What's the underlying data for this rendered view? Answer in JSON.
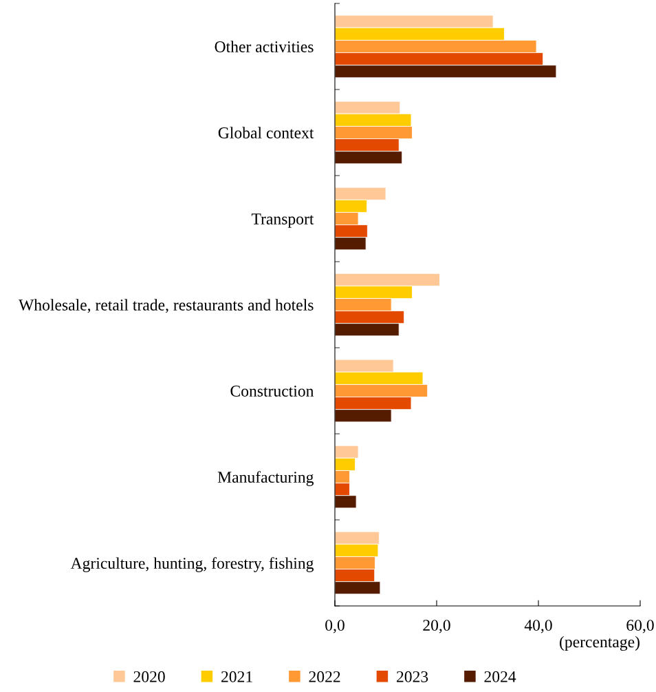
{
  "chart_data": {
    "type": "bar",
    "orientation": "horizontal",
    "categories": [
      "Other activities",
      "Global context",
      "Transport",
      "Wholesale, retail trade, restaurants and hotels",
      "Construction",
      "Manufacturing",
      "Agriculture, hunting, forestry, fishing"
    ],
    "series": [
      {
        "name": "2020",
        "color": "#ffc896",
        "values": [
          31.1,
          12.8,
          10.0,
          20.6,
          11.5,
          4.6,
          8.7
        ]
      },
      {
        "name": "2021",
        "color": "#ffcc00",
        "values": [
          33.3,
          15.0,
          6.3,
          15.2,
          17.3,
          4.0,
          8.5
        ]
      },
      {
        "name": "2022",
        "color": "#ff9933",
        "values": [
          39.6,
          15.2,
          4.6,
          11.1,
          18.2,
          2.9,
          7.9
        ]
      },
      {
        "name": "2023",
        "color": "#e34a00",
        "values": [
          40.9,
          12.6,
          6.4,
          13.6,
          15.0,
          2.9,
          7.8
        ]
      },
      {
        "name": "2024",
        "color": "#561c00",
        "values": [
          43.5,
          13.2,
          6.1,
          12.6,
          11.1,
          4.2,
          8.9
        ]
      }
    ],
    "xlabel": "(percentage)",
    "xlim": [
      0,
      60
    ],
    "xticks": [
      {
        "value": 0,
        "label": "0,0"
      },
      {
        "value": 20,
        "label": "20,0"
      },
      {
        "value": 40,
        "label": "40,0"
      },
      {
        "value": 60,
        "label": "60,0"
      }
    ],
    "grid": false,
    "legend": "bottom"
  }
}
